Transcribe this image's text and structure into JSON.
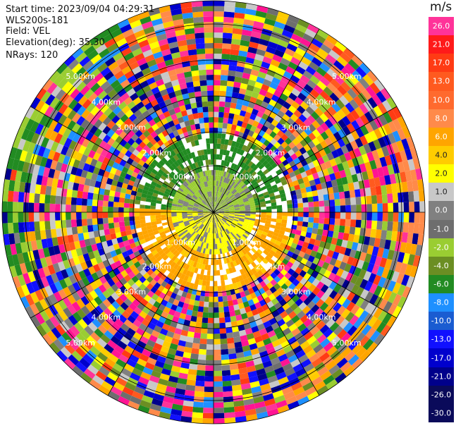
{
  "info": {
    "start_time": "Start time: 2023/09/04 04:29:31",
    "instrument": "WLS200s-181",
    "field": "Field: VEL",
    "elevation": "Elevation(deg): 35.30",
    "nrays": "NRays: 120"
  },
  "colorbar": {
    "unit": "m/s",
    "ticks": [
      "26.0",
      "21.0",
      "17.0",
      "13.0",
      "10.0",
      "8.0",
      "6.0",
      "4.0",
      "2.0",
      "1.0",
      "0.0",
      "-1.0",
      "-2.0",
      "-4.0",
      "-6.0",
      "-8.0",
      "-10.0",
      "-13.0",
      "-17.0",
      "-21.0",
      "-26.0",
      "-30.0"
    ],
    "colors": [
      "#ff3399",
      "#ff1a1a",
      "#ff3b14",
      "#ff5a1f",
      "#ff6a2e",
      "#ff8a4a",
      "#ffa500",
      "#ffcc00",
      "#ffff00",
      "#c8c8c8",
      "#808080",
      "#6e6e6e",
      "#9acd32",
      "#6b8e23",
      "#228b22",
      "#1e90ff",
      "#1a5cd1",
      "#1010ff",
      "#0000cd",
      "#00008b",
      "#0a0a5a",
      "#0a0a5a"
    ]
  },
  "chart_data": {
    "type": "heatmap",
    "title": "",
    "field": "VEL",
    "units": "m/s",
    "elevation_deg": 35.3,
    "n_rays": 120,
    "range_rings_km": [
      1.0,
      2.0,
      3.0,
      4.0,
      5.0
    ],
    "ring_labels": [
      "1.00km",
      "2.00km",
      "3.00km",
      "4.00km",
      "5.00km"
    ],
    "color_scale": [
      -30.0,
      -26.0,
      -21.0,
      -17.0,
      -13.0,
      -10.0,
      -8.0,
      -6.0,
      -4.0,
      -2.0,
      -1.0,
      0.0,
      1.0,
      2.0,
      4.0,
      6.0,
      8.0,
      10.0,
      13.0,
      17.0,
      21.0,
      26.0
    ]
  }
}
